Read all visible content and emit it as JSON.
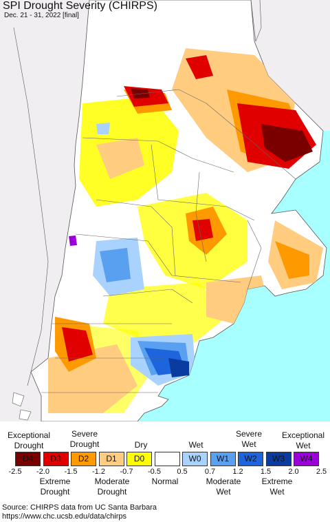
{
  "title": "SPI Drought Severity (CHIRPS)",
  "subtitle": "Dec. 21 - 31, 2022 [final]",
  "legend": {
    "upper_labels": [
      {
        "lines": [
          "Exceptional",
          "Drought"
        ]
      },
      {
        "lines": [
          "Severe",
          "Drought"
        ]
      },
      {
        "lines": [
          "Dry"
        ]
      },
      {
        "lines": [
          "Wet"
        ]
      },
      {
        "lines": [
          "Severe",
          "Wet"
        ]
      },
      {
        "lines": [
          "Exceptional",
          "Wet"
        ]
      }
    ],
    "classes": [
      {
        "code": "D4",
        "color": "#7a0000"
      },
      {
        "code": "D3",
        "color": "#e00000"
      },
      {
        "code": "D2",
        "color": "#ff9900"
      },
      {
        "code": "D1",
        "color": "#ffcc80"
      },
      {
        "code": "D0",
        "color": "#ffff00"
      },
      {
        "code": "",
        "color": "#ffffff"
      },
      {
        "code": "W0",
        "color": "#aad2ff"
      },
      {
        "code": "W1",
        "color": "#5aa0f0"
      },
      {
        "code": "W2",
        "color": "#1e64dc"
      },
      {
        "code": "W3",
        "color": "#0a3ca0"
      },
      {
        "code": "W4",
        "color": "#9b00d9"
      }
    ],
    "ticks": [
      "-2.5",
      "-2.0",
      "-1.5",
      "-1.2",
      "-0.7",
      "-0.5",
      "0.5",
      "0.7",
      "1.2",
      "1.5",
      "2.0",
      "2.5"
    ],
    "lower_labels": [
      {
        "lines": [
          "Extreme",
          "Drought"
        ]
      },
      {
        "lines": [
          "Moderate",
          "Drought"
        ]
      },
      {
        "lines": [
          "Normal"
        ]
      },
      {
        "lines": [
          "Moderate",
          "Wet"
        ]
      },
      {
        "lines": [
          "Extreme",
          "Wet"
        ]
      }
    ]
  },
  "source_line1": "Source: CHIRPS data from UC Santa Barbara",
  "source_line2": "https://www.chc.ucsb.edu/data/chirps"
}
